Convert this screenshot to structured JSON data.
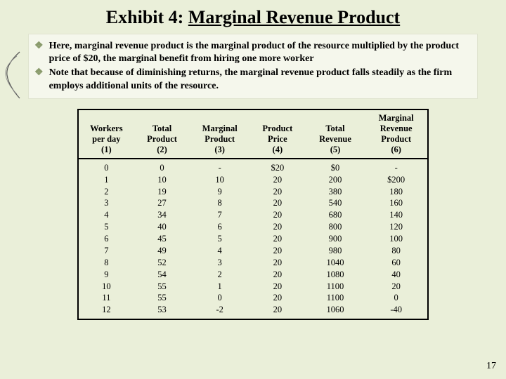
{
  "title_prefix": "Exhibit 4:  ",
  "title_underlined": "Marginal Revenue Product",
  "bullets": [
    "Here, marginal revenue product is the marginal product of the resource multiplied by the product price of $20, the marginal benefit from hiring one more worker",
    "Note that because of diminishing returns, the marginal revenue product falls steadily as the firm employs additional units of the resource."
  ],
  "table": {
    "columns": [
      [
        "Workers",
        "per day",
        "(1)"
      ],
      [
        "Total",
        "Product",
        "(2)"
      ],
      [
        "Marginal",
        "Product",
        "(3)"
      ],
      [
        "Product",
        "Price",
        "(4)"
      ],
      [
        "Total",
        "Revenue",
        "(5)"
      ],
      [
        "Marginal",
        "Revenue",
        "Product",
        "(6)"
      ]
    ],
    "col_widths": [
      "16%",
      "16%",
      "17%",
      "16%",
      "17%",
      "18%"
    ],
    "rows": [
      [
        "0",
        "0",
        "-",
        "$20",
        "$0",
        "-"
      ],
      [
        "1",
        "10",
        "10",
        "20",
        "200",
        "$200"
      ],
      [
        "2",
        "19",
        "9",
        "20",
        "380",
        "180"
      ],
      [
        "3",
        "27",
        "8",
        "20",
        "540",
        "160"
      ],
      [
        "4",
        "34",
        "7",
        "20",
        "680",
        "140"
      ],
      [
        "5",
        "40",
        "6",
        "20",
        "800",
        "120"
      ],
      [
        "6",
        "45",
        "5",
        "20",
        "900",
        "100"
      ],
      [
        "7",
        "49",
        "4",
        "20",
        "980",
        "80"
      ],
      [
        "8",
        "52",
        "3",
        "20",
        "1040",
        "60"
      ],
      [
        "9",
        "54",
        "2",
        "20",
        "1080",
        "40"
      ],
      [
        "10",
        "55",
        "1",
        "20",
        "1100",
        "20"
      ],
      [
        "11",
        "55",
        "0",
        "20",
        "1100",
        "0"
      ],
      [
        "12",
        "53",
        "-2",
        "20",
        "1060",
        "-40"
      ]
    ]
  },
  "page_number": "17",
  "colors": {
    "background": "#eaefd9",
    "bullet_bg": "#f5f7ec",
    "diamond": "#8a9b6c"
  }
}
